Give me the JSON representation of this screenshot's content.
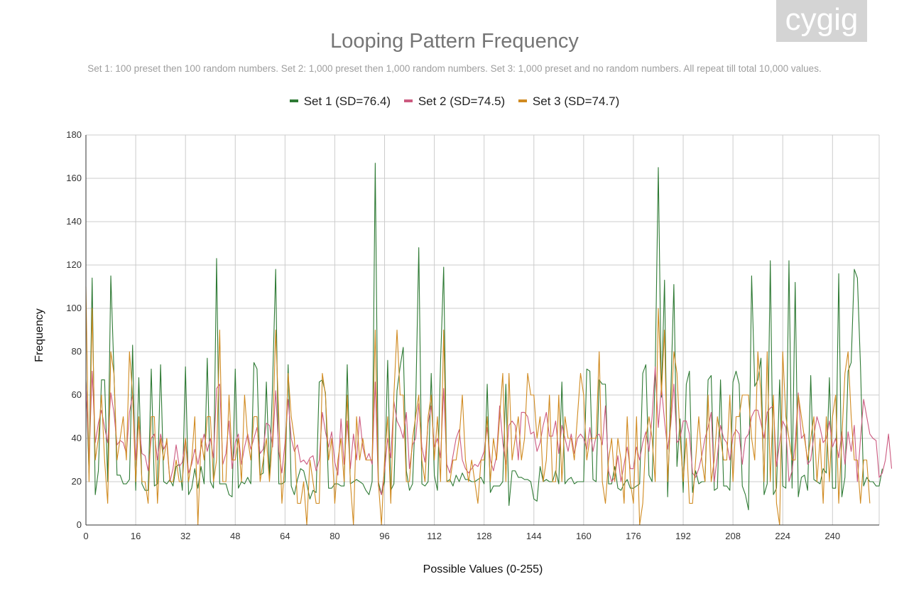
{
  "logo": {
    "text": "cygig"
  },
  "colors": {
    "set1": "#2e7a34",
    "set2": "#cc5a80",
    "set3": "#d08a20",
    "grid": "#cccccc",
    "axis": "#333333"
  },
  "chart_data": {
    "type": "line",
    "title": "Looping Pattern Frequency",
    "subtitle": "Set 1: 100 preset then 100 random numbers. Set 2: 1,000 preset then 1,000 random numbers. Set 3: 1,000 preset and no random numbers. All repeat till total 10,000 values.",
    "xlabel": "Possible Values (0-255)",
    "ylabel": "Frequency",
    "xlim": [
      0,
      255
    ],
    "ylim": [
      0,
      180
    ],
    "xticks": [
      0,
      16,
      32,
      48,
      64,
      80,
      96,
      112,
      128,
      144,
      160,
      176,
      192,
      208,
      224,
      240
    ],
    "yticks": [
      0,
      20,
      40,
      60,
      80,
      100,
      120,
      140,
      160,
      180
    ],
    "grid": true,
    "legend_position": "top",
    "x_start": 0,
    "series": [
      {
        "name": "Set 1 (SD=76.4)",
        "values": [
          67,
          24,
          114,
          14,
          25,
          67,
          67,
          20,
          115,
          71,
          23,
          23,
          19,
          19,
          21,
          83,
          16,
          68,
          19,
          16,
          16,
          72,
          18,
          19,
          74,
          20,
          19,
          21,
          18,
          27,
          28,
          16,
          73,
          14,
          17,
          26,
          17,
          27,
          19,
          77,
          20,
          17,
          123,
          19,
          19,
          19,
          14,
          13,
          72,
          17,
          20,
          19,
          22,
          19,
          75,
          72,
          23,
          24,
          66,
          22,
          65,
          118,
          19,
          19,
          20,
          74,
          18,
          14,
          21,
          26,
          25,
          19,
          12,
          16,
          15,
          66,
          67,
          61,
          17,
          17,
          19,
          19,
          18,
          18,
          74,
          19,
          20,
          21,
          20,
          19,
          16,
          14,
          20,
          167,
          20,
          14,
          20,
          76,
          16,
          19,
          62,
          73,
          82,
          25,
          16,
          19,
          55,
          128,
          19,
          18,
          20,
          70,
          23,
          16,
          75,
          119,
          20,
          21,
          18,
          23,
          20,
          24,
          21,
          21,
          20,
          20,
          21,
          22,
          19,
          65,
          15,
          18,
          18,
          18,
          20,
          65,
          9,
          25,
          25,
          22,
          22,
          21,
          21,
          20,
          12,
          11,
          27,
          20,
          21,
          20,
          20,
          25,
          19,
          66,
          19,
          21,
          22,
          19,
          20,
          20,
          20,
          72,
          71,
          21,
          20,
          67,
          65,
          65,
          19,
          19,
          27,
          17,
          16,
          19,
          21,
          17,
          17,
          18,
          19,
          70,
          74,
          23,
          20,
          70,
          165,
          59,
          113,
          13,
          60,
          111,
          27,
          49,
          15,
          65,
          71,
          15,
          25,
          19,
          20,
          20,
          67,
          69,
          16,
          17,
          67,
          18,
          18,
          16,
          66,
          71,
          65,
          18,
          14,
          7,
          115,
          64,
          67,
          77,
          14,
          19,
          122,
          14,
          17,
          67,
          18,
          17,
          122,
          17,
          112,
          13,
          22,
          23,
          16,
          69,
          21,
          20,
          19,
          26,
          24,
          68,
          17,
          17,
          116,
          13,
          22,
          71,
          75,
          118,
          114,
          73,
          18,
          22,
          20,
          20,
          18,
          18,
          26
        ]
      },
      {
        "name": "Set 2 (SD=74.5)",
        "values": [
          66,
          30,
          71,
          38,
          47,
          53,
          45,
          38,
          61,
          52,
          37,
          39,
          38,
          33,
          52,
          60,
          30,
          48,
          33,
          32,
          25,
          40,
          42,
          30,
          42,
          35,
          38,
          20,
          26,
          37,
          27,
          29,
          40,
          24,
          28,
          35,
          28,
          36,
          42,
          34,
          40,
          31,
          63,
          65,
          28,
          33,
          48,
          26,
          38,
          42,
          28,
          36,
          42,
          35,
          40,
          45,
          33,
          35,
          47,
          46,
          36,
          62,
          34,
          24,
          38,
          58,
          40,
          34,
          37,
          29,
          30,
          28,
          31,
          32,
          25,
          30,
          52,
          43,
          36,
          43,
          29,
          23,
          49,
          28,
          48,
          26,
          42,
          30,
          50,
          36,
          30,
          33,
          28,
          66,
          18,
          14,
          25,
          40,
          31,
          57,
          48,
          45,
          40,
          52,
          26,
          37,
          40,
          56,
          36,
          29,
          47,
          55,
          36,
          40,
          31,
          63,
          28,
          24,
          32,
          40,
          44,
          30,
          26,
          24,
          26,
          28,
          27,
          30,
          34,
          45,
          30,
          25,
          32,
          55,
          38,
          28,
          46,
          48,
          46,
          30,
          52,
          52,
          50,
          42,
          43,
          34,
          38,
          46,
          52,
          41,
          41,
          48,
          33,
          46,
          40,
          34,
          42,
          33,
          40,
          42,
          40,
          35,
          45,
          34,
          41,
          42,
          37,
          55,
          25,
          20,
          22,
          32,
          20,
          28,
          36,
          26,
          26,
          36,
          30,
          38,
          43,
          34,
          50,
          73,
          45,
          64,
          48,
          35,
          46,
          65,
          38,
          40,
          48,
          48,
          42,
          24,
          22,
          26,
          32,
          40,
          45,
          52,
          20,
          32,
          46,
          40,
          38,
          30,
          41,
          44,
          42,
          28,
          40,
          42,
          50,
          53,
          53,
          47,
          40,
          52,
          54,
          55,
          27,
          38,
          48,
          45,
          20,
          25,
          38,
          61,
          40,
          42,
          28,
          30,
          41,
          50,
          45,
          38,
          40,
          48,
          36,
          40,
          31,
          43,
          28,
          43,
          34,
          46,
          20,
          40,
          58,
          50,
          42,
          40,
          39,
          22,
          24,
          30,
          42,
          26
        ]
      },
      {
        "name": "Set 3 (SD=74.7)",
        "values": [
          110,
          20,
          100,
          30,
          40,
          60,
          30,
          10,
          80,
          70,
          30,
          40,
          50,
          30,
          80,
          60,
          20,
          50,
          20,
          20,
          10,
          50,
          50,
          10,
          40,
          30,
          40,
          20,
          20,
          30,
          20,
          20,
          40,
          20,
          30,
          50,
          0,
          40,
          30,
          50,
          50,
          20,
          30,
          90,
          20,
          20,
          60,
          30,
          30,
          40,
          20,
          60,
          40,
          30,
          50,
          50,
          20,
          30,
          40,
          20,
          40,
          90,
          50,
          10,
          30,
          70,
          50,
          40,
          10,
          10,
          20,
          0,
          30,
          20,
          10,
          10,
          70,
          60,
          30,
          40,
          10,
          30,
          40,
          20,
          60,
          20,
          0,
          50,
          30,
          40,
          30,
          30,
          30,
          90,
          20,
          0,
          30,
          50,
          10,
          60,
          90,
          60,
          60,
          20,
          20,
          40,
          50,
          60,
          30,
          20,
          50,
          60,
          30,
          50,
          20,
          90,
          20,
          20,
          30,
          30,
          40,
          60,
          30,
          20,
          30,
          20,
          10,
          30,
          30,
          50,
          20,
          40,
          30,
          50,
          70,
          20,
          70,
          30,
          40,
          50,
          30,
          40,
          70,
          60,
          60,
          40,
          50,
          20,
          30,
          60,
          20,
          20,
          60,
          20,
          50,
          40,
          40,
          30,
          50,
          70,
          60,
          30,
          40,
          40,
          40,
          80,
          20,
          10,
          30,
          40,
          20,
          40,
          30,
          10,
          50,
          20,
          10,
          50,
          0,
          10,
          40,
          50,
          40,
          20,
          100,
          60,
          90,
          20,
          50,
          80,
          70,
          40,
          20,
          40,
          10,
          10,
          30,
          50,
          30,
          20,
          60,
          20,
          30,
          50,
          40,
          30,
          30,
          60,
          20,
          50,
          50,
          60,
          60,
          60,
          40,
          30,
          80,
          60,
          20,
          80,
          20,
          60,
          10,
          0,
          80,
          50,
          40,
          30,
          30,
          60,
          50,
          40,
          30,
          40,
          50,
          20,
          40,
          10,
          50,
          20,
          50,
          60,
          10,
          40,
          70,
          80,
          50,
          30,
          30,
          10,
          30,
          30,
          10
        ]
      }
    ]
  }
}
